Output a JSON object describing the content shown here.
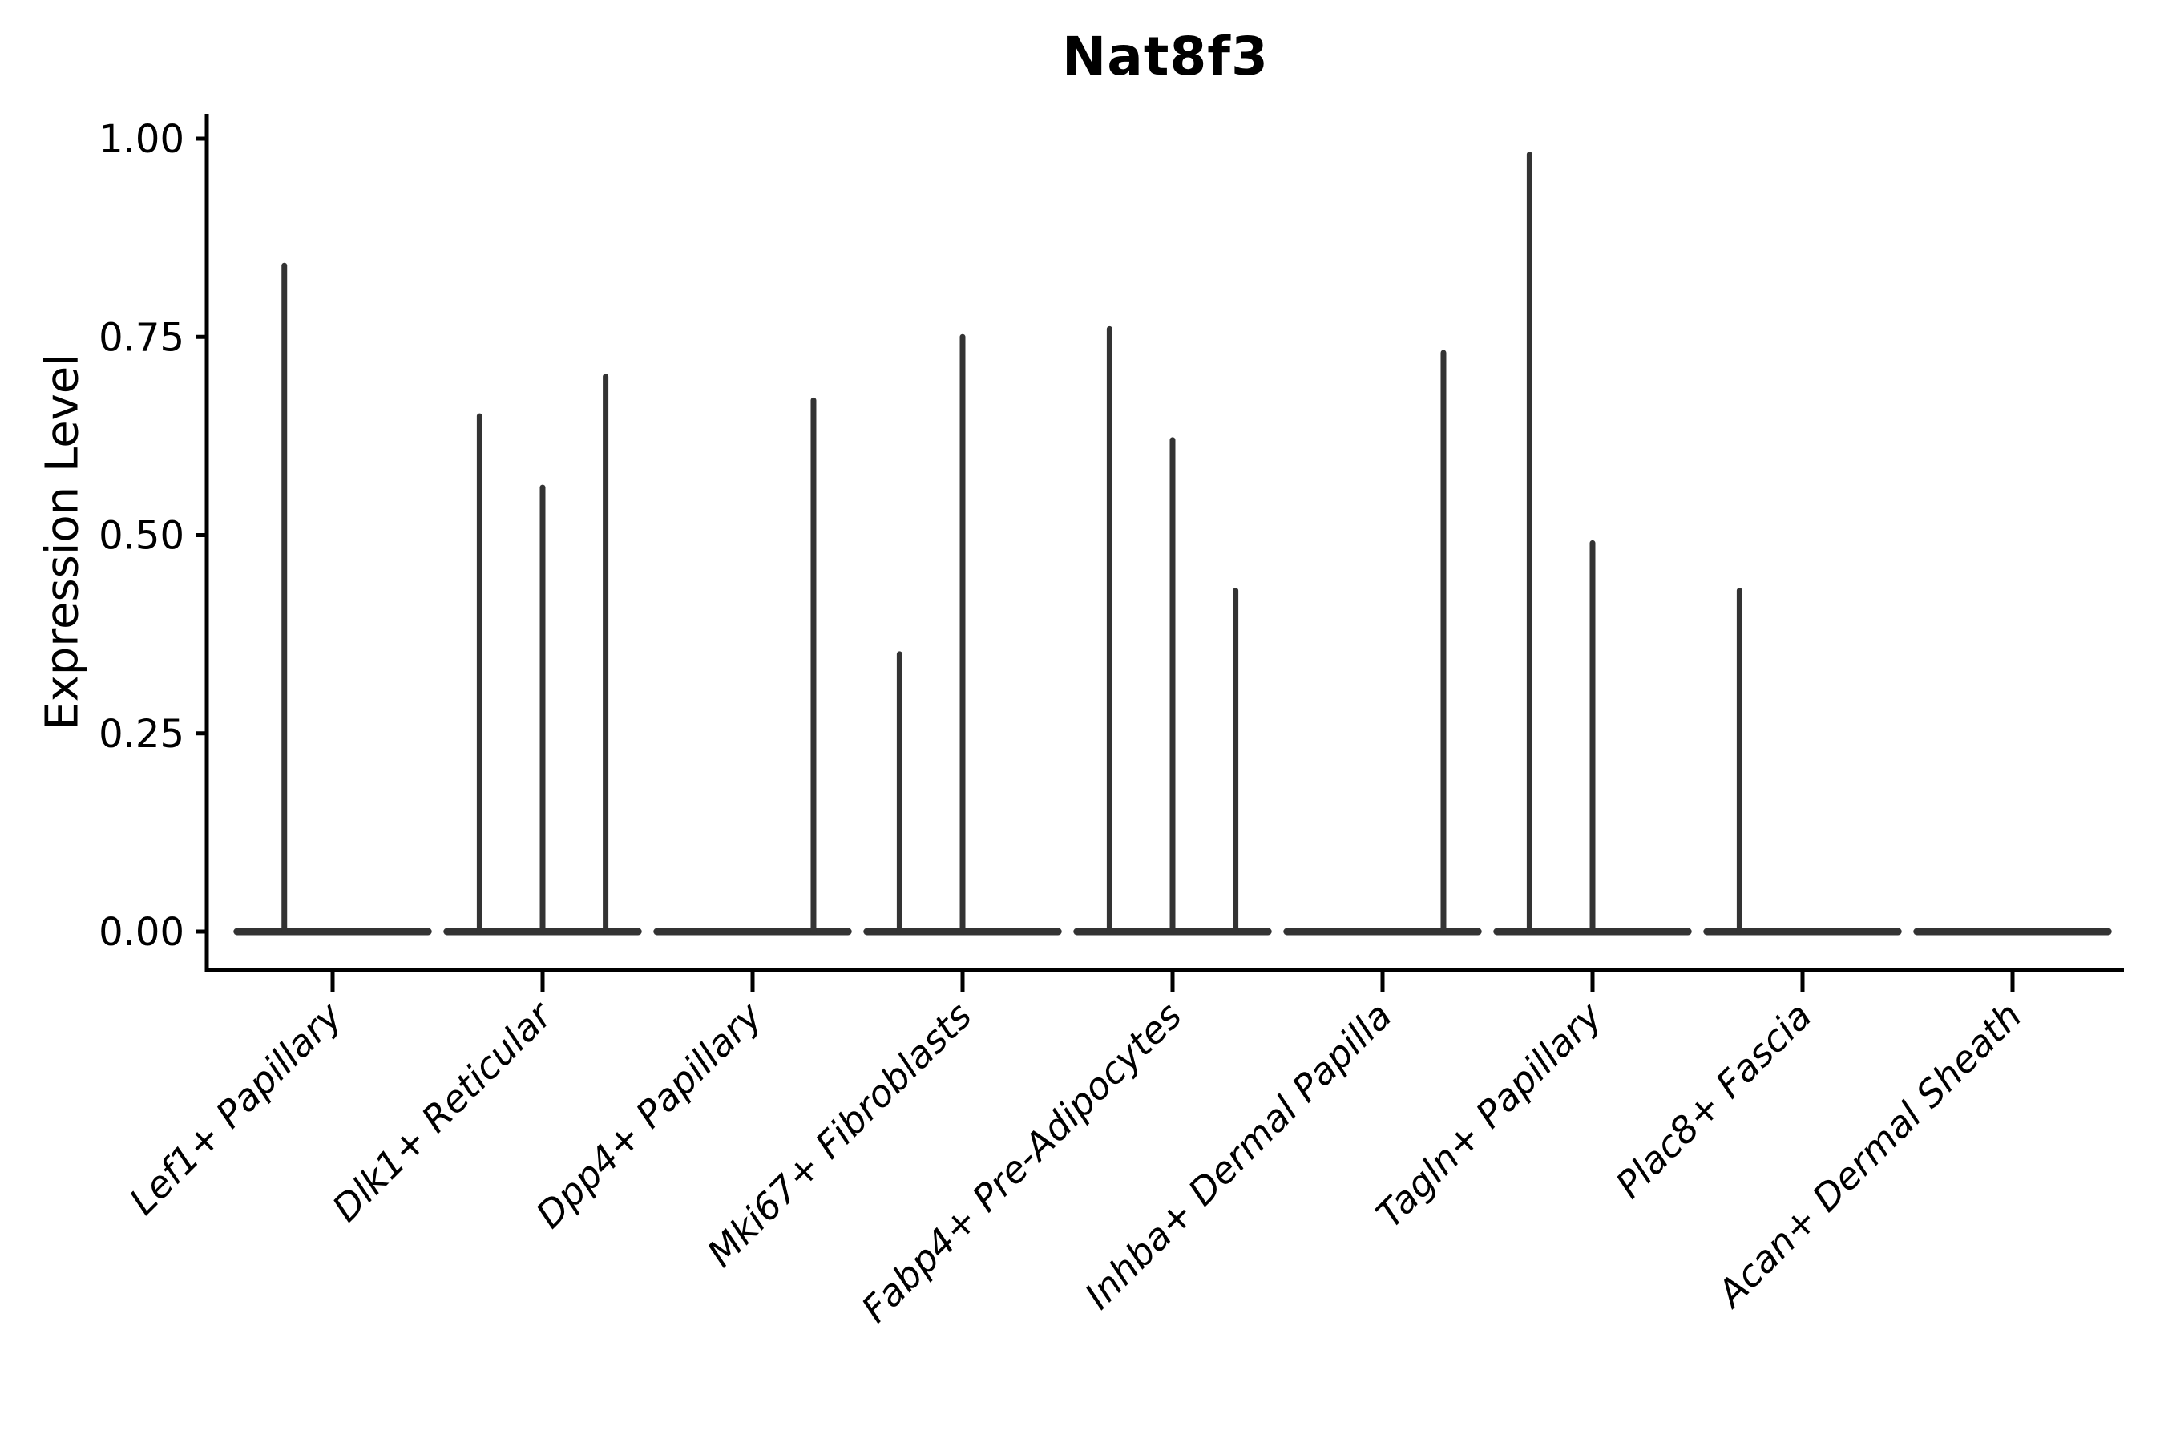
{
  "title": "Nat8f3",
  "colors": {
    "spike": "#333333",
    "baseline": "#333333",
    "axis": "#000000",
    "text": "#000000",
    "background": "#ffffff"
  },
  "chart_data": {
    "type": "violin",
    "title": "Nat8f3",
    "xlabel": "",
    "ylabel": "Expression Level",
    "ylim": [
      0,
      1.0
    ],
    "grid": false,
    "legend": "none",
    "y_ticks": [
      0.0,
      0.25,
      0.5,
      0.75,
      1.0
    ],
    "y_tick_labels": [
      "0.00",
      "0.25",
      "0.50",
      "0.75",
      "1.00"
    ],
    "categories": [
      "Lef1+ Papillary",
      "Dlk1+ Reticular",
      "Dpp4+ Papillary",
      "Mki67+ Fibroblasts",
      "Fabp4+ Pre-Adipocytes",
      "Inhba+ Dermal Papilla",
      "Tagln+ Papillary",
      "Plac8+ Fascia",
      "Acan+ Dermal Sheath"
    ],
    "baseline_halfwidth_frac": 0.455,
    "series": [
      {
        "category": "Lef1+ Papillary",
        "spikes": [
          {
            "offset": -0.23,
            "value": 0.84
          }
        ]
      },
      {
        "category": "Dlk1+ Reticular",
        "spikes": [
          {
            "offset": -0.3,
            "value": 0.65
          },
          {
            "offset": 0.0,
            "value": 0.56
          },
          {
            "offset": 0.3,
            "value": 0.7
          }
        ]
      },
      {
        "category": "Dpp4+ Papillary",
        "spikes": [
          {
            "offset": 0.29,
            "value": 0.67
          }
        ]
      },
      {
        "category": "Mki67+ Fibroblasts",
        "spikes": [
          {
            "offset": -0.3,
            "value": 0.35
          },
          {
            "offset": 0.0,
            "value": 0.75
          }
        ]
      },
      {
        "category": "Fabp4+ Pre-Adipocytes",
        "spikes": [
          {
            "offset": -0.3,
            "value": 0.76
          },
          {
            "offset": 0.0,
            "value": 0.62
          },
          {
            "offset": 0.3,
            "value": 0.43
          }
        ]
      },
      {
        "category": "Inhba+ Dermal Papilla",
        "spikes": [
          {
            "offset": 0.29,
            "value": 0.73
          }
        ]
      },
      {
        "category": "Tagln+ Papillary",
        "spikes": [
          {
            "offset": -0.3,
            "value": 0.98
          },
          {
            "offset": 0.0,
            "value": 0.49
          }
        ]
      },
      {
        "category": "Plac8+ Fascia",
        "spikes": [
          {
            "offset": -0.3,
            "value": 0.43
          }
        ]
      },
      {
        "category": "Acan+ Dermal Sheath",
        "spikes": []
      }
    ]
  }
}
